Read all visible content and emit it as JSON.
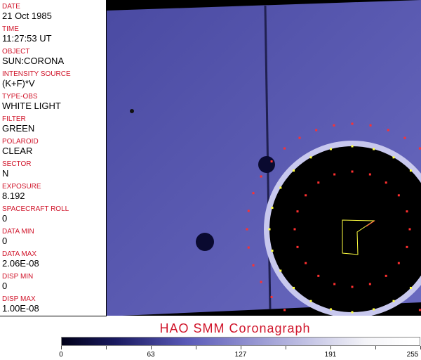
{
  "fields": [
    {
      "label": "DATE",
      "value": "21 Oct 1985"
    },
    {
      "label": "TIME",
      "value": "11:27:53 UT"
    },
    {
      "label": "OBJECT",
      "value": "SUN:CORONA"
    },
    {
      "label": "INTENSITY SOURCE",
      "value": "(K+F)*V"
    },
    {
      "label": "TYPE-OBS",
      "value": "WHITE LIGHT"
    },
    {
      "label": "FILTER",
      "value": "GREEN"
    },
    {
      "label": "POLAROID",
      "value": "CLEAR"
    },
    {
      "label": "SECTOR",
      "value": "N"
    },
    {
      "label": "EXPOSURE",
      "value": "8.192"
    },
    {
      "label": "SPACECRAFT ROLL",
      "value": "0"
    },
    {
      "label": "DATA MIN",
      "value": "0"
    },
    {
      "label": "DATA MAX",
      "value": "2.06E-08"
    },
    {
      "label": "DISP MIN",
      "value": "0"
    },
    {
      "label": "DISP MAX",
      "value": "1.00E-08"
    }
  ],
  "title": "HAO   SMM  Coronagraph",
  "colorbar": {
    "ticks": [
      "0",
      "63",
      "127",
      "191",
      "255"
    ],
    "colors": [
      "#000018",
      "#5a5ab8",
      "#ffffff"
    ]
  },
  "colors": {
    "label": "#d0142a",
    "image_bg": "#5050a8",
    "occulter": "#000000"
  }
}
